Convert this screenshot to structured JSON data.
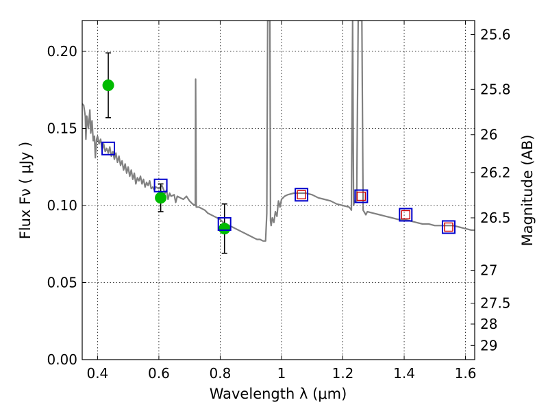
{
  "chart_data": {
    "type": "scatter",
    "title": "",
    "xlabel": "Wavelength  λ (μm)",
    "ylabel": "Flux  Fν  ( μJy )",
    "y2label": "Magnitude (AB)",
    "xlim": [
      0.35,
      1.63
    ],
    "ylim": [
      0.0,
      0.22
    ],
    "grid": true,
    "x_ticks": [
      0.4,
      0.6,
      0.8,
      1.0,
      1.2,
      1.4,
      1.6
    ],
    "x_tick_labels": [
      "0.4",
      "0.6",
      "0.8",
      "1",
      "1.2",
      "1.4",
      "1.6"
    ],
    "y_ticks": [
      0.0,
      0.05,
      0.1,
      0.15,
      0.2
    ],
    "y_tick_labels": [
      "0.00",
      "0.05",
      "0.10",
      "0.15",
      "0.20"
    ],
    "y2_ticks": [
      {
        "label": "25.6",
        "flux": 0.2109
      },
      {
        "label": "25.8",
        "flux": 0.1754
      },
      {
        "label": "26",
        "flux": 0.1459
      },
      {
        "label": "26.2",
        "flux": 0.1214
      },
      {
        "label": "26.5",
        "flux": 0.092
      },
      {
        "label": "27",
        "flux": 0.058
      },
      {
        "label": "27.5",
        "flux": 0.0366
      },
      {
        "label": "28",
        "flux": 0.0231
      },
      {
        "label": "29",
        "flux": 0.0092
      }
    ],
    "series": [
      {
        "name": "model_spectrum",
        "kind": "line",
        "color": "#808080",
        "points": [
          [
            0.35,
            0.166
          ],
          [
            0.355,
            0.165
          ],
          [
            0.36,
            0.158
          ],
          [
            0.362,
            0.143
          ],
          [
            0.365,
            0.158
          ],
          [
            0.37,
            0.15
          ],
          [
            0.375,
            0.162
          ],
          [
            0.378,
            0.147
          ],
          [
            0.382,
            0.155
          ],
          [
            0.386,
            0.142
          ],
          [
            0.39,
            0.145
          ],
          [
            0.393,
            0.131
          ],
          [
            0.397,
            0.143
          ],
          [
            0.4,
            0.145
          ],
          [
            0.405,
            0.14
          ],
          [
            0.41,
            0.143
          ],
          [
            0.415,
            0.136
          ],
          [
            0.42,
            0.14
          ],
          [
            0.425,
            0.135
          ],
          [
            0.43,
            0.137
          ],
          [
            0.435,
            0.134
          ],
          [
            0.44,
            0.138
          ],
          [
            0.445,
            0.132
          ],
          [
            0.45,
            0.135
          ],
          [
            0.455,
            0.13
          ],
          [
            0.46,
            0.134
          ],
          [
            0.465,
            0.128
          ],
          [
            0.47,
            0.132
          ],
          [
            0.475,
            0.126
          ],
          [
            0.48,
            0.129
          ],
          [
            0.485,
            0.123
          ],
          [
            0.49,
            0.127
          ],
          [
            0.495,
            0.121
          ],
          [
            0.5,
            0.125
          ],
          [
            0.505,
            0.119
          ],
          [
            0.51,
            0.123
          ],
          [
            0.515,
            0.117
          ],
          [
            0.52,
            0.121
          ],
          [
            0.525,
            0.114
          ],
          [
            0.53,
            0.118
          ],
          [
            0.535,
            0.116
          ],
          [
            0.54,
            0.119
          ],
          [
            0.545,
            0.114
          ],
          [
            0.55,
            0.117
          ],
          [
            0.555,
            0.112
          ],
          [
            0.56,
            0.115
          ],
          [
            0.565,
            0.113
          ],
          [
            0.57,
            0.116
          ],
          [
            0.575,
            0.111
          ],
          [
            0.58,
            0.112
          ],
          [
            0.585,
            0.11
          ],
          [
            0.59,
            0.112
          ],
          [
            0.6,
            0.111
          ],
          [
            0.61,
            0.113
          ],
          [
            0.62,
            0.108
          ],
          [
            0.625,
            0.11
          ],
          [
            0.63,
            0.104
          ],
          [
            0.635,
            0.108
          ],
          [
            0.64,
            0.106
          ],
          [
            0.65,
            0.107
          ],
          [
            0.655,
            0.102
          ],
          [
            0.66,
            0.106
          ],
          [
            0.67,
            0.105
          ],
          [
            0.68,
            0.104
          ],
          [
            0.69,
            0.106
          ],
          [
            0.7,
            0.103
          ],
          [
            0.71,
            0.101
          ],
          [
            0.719,
            0.1
          ],
          [
            0.72,
            0.182
          ],
          [
            0.722,
            0.099
          ],
          [
            0.73,
            0.099
          ],
          [
            0.74,
            0.098
          ],
          [
            0.75,
            0.097
          ],
          [
            0.76,
            0.095
          ],
          [
            0.77,
            0.094
          ],
          [
            0.78,
            0.093
          ],
          [
            0.79,
            0.092
          ],
          [
            0.8,
            0.091
          ],
          [
            0.81,
            0.089
          ],
          [
            0.82,
            0.088
          ],
          [
            0.83,
            0.087
          ],
          [
            0.84,
            0.086
          ],
          [
            0.85,
            0.085
          ],
          [
            0.86,
            0.084
          ],
          [
            0.87,
            0.083
          ],
          [
            0.88,
            0.082
          ],
          [
            0.89,
            0.081
          ],
          [
            0.9,
            0.08
          ],
          [
            0.91,
            0.079
          ],
          [
            0.92,
            0.078
          ],
          [
            0.93,
            0.078
          ],
          [
            0.94,
            0.077
          ],
          [
            0.948,
            0.077
          ],
          [
            0.952,
            0.095
          ],
          [
            0.955,
            0.22
          ],
          [
            0.962,
            0.22
          ],
          [
            0.964,
            0.09
          ],
          [
            0.966,
            0.087
          ],
          [
            0.97,
            0.092
          ],
          [
            0.975,
            0.089
          ],
          [
            0.98,
            0.096
          ],
          [
            0.985,
            0.093
          ],
          [
            0.99,
            0.103
          ],
          [
            0.995,
            0.099
          ],
          [
            1.0,
            0.104
          ],
          [
            1.01,
            0.106
          ],
          [
            1.02,
            0.107
          ],
          [
            1.04,
            0.108
          ],
          [
            1.06,
            0.108
          ],
          [
            1.08,
            0.108
          ],
          [
            1.1,
            0.107
          ],
          [
            1.12,
            0.105
          ],
          [
            1.14,
            0.104
          ],
          [
            1.16,
            0.103
          ],
          [
            1.18,
            0.101
          ],
          [
            1.2,
            0.1
          ],
          [
            1.22,
            0.099
          ],
          [
            1.225,
            0.098
          ],
          [
            1.228,
            0.097
          ],
          [
            1.232,
            0.22
          ],
          [
            1.235,
            0.1
          ],
          [
            1.238,
            0.103
          ],
          [
            1.245,
            0.103
          ],
          [
            1.25,
            0.22
          ],
          [
            1.262,
            0.22
          ],
          [
            1.266,
            0.097
          ],
          [
            1.275,
            0.094
          ],
          [
            1.28,
            0.096
          ],
          [
            1.3,
            0.095
          ],
          [
            1.32,
            0.094
          ],
          [
            1.34,
            0.093
          ],
          [
            1.36,
            0.092
          ],
          [
            1.38,
            0.091
          ],
          [
            1.4,
            0.091
          ],
          [
            1.42,
            0.09
          ],
          [
            1.44,
            0.089
          ],
          [
            1.46,
            0.088
          ],
          [
            1.48,
            0.088
          ],
          [
            1.5,
            0.087
          ],
          [
            1.52,
            0.087
          ],
          [
            1.54,
            0.087
          ],
          [
            1.56,
            0.087
          ],
          [
            1.58,
            0.086
          ],
          [
            1.6,
            0.085
          ],
          [
            1.62,
            0.084
          ],
          [
            1.63,
            0.084
          ]
        ]
      },
      {
        "name": "observed_photometry",
        "kind": "errorbar",
        "color": "#00bb00",
        "points": [
          {
            "x": 0.435,
            "y": 0.178,
            "err": 0.021
          },
          {
            "x": 0.606,
            "y": 0.105,
            "err": 0.009
          },
          {
            "x": 0.814,
            "y": 0.085,
            "err": 0.016
          }
        ]
      },
      {
        "name": "model_photometry",
        "kind": "marker",
        "marker": "square",
        "color": "#0000cc",
        "points": [
          {
            "x": 0.435,
            "y": 0.137
          },
          {
            "x": 0.606,
            "y": 0.113
          },
          {
            "x": 0.814,
            "y": 0.088
          },
          {
            "x": 1.065,
            "y": 0.107
          },
          {
            "x": 1.26,
            "y": 0.106
          },
          {
            "x": 1.405,
            "y": 0.094
          },
          {
            "x": 1.545,
            "y": 0.086
          }
        ]
      },
      {
        "name": "upper_limit_markers",
        "kind": "marker",
        "marker": "square",
        "color": "#cc0000",
        "points": [
          {
            "x": 1.065,
            "y": 0.107
          },
          {
            "x": 1.26,
            "y": 0.106
          },
          {
            "x": 1.405,
            "y": 0.094
          },
          {
            "x": 1.545,
            "y": 0.086
          }
        ]
      }
    ]
  }
}
